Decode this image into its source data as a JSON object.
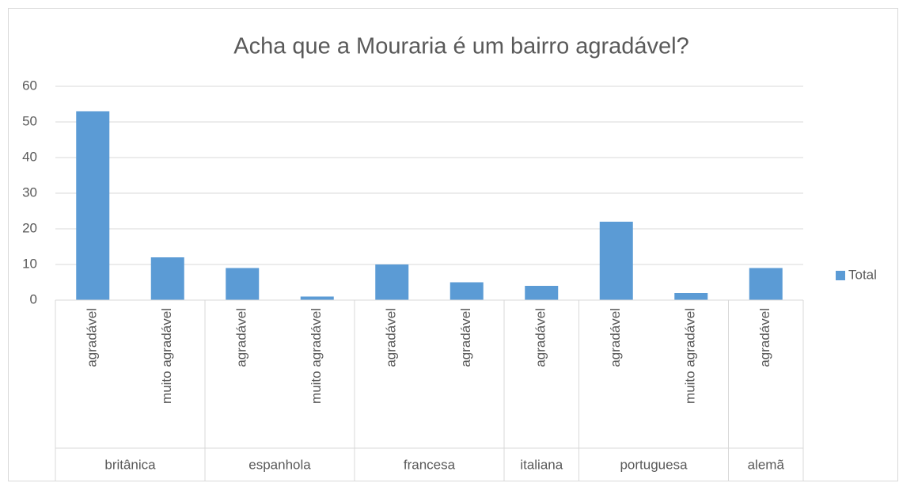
{
  "chart_data": {
    "type": "bar",
    "title": "Acha que a Mouraria é um bairro agradável?",
    "groups": [
      {
        "name": "britânica",
        "categories": [
          "agradável",
          "muito agradável"
        ]
      },
      {
        "name": "espanhola",
        "categories": [
          "agradável",
          "muito agradável"
        ]
      },
      {
        "name": "francesa",
        "categories": [
          "agradável",
          "agradável"
        ]
      },
      {
        "name": "italiana",
        "categories": [
          "agradável"
        ]
      },
      {
        "name": "portuguesa",
        "categories": [
          "agradável",
          "muito agradável"
        ]
      },
      {
        "name": "alemã",
        "categories": [
          "agradável"
        ]
      }
    ],
    "series": [
      {
        "name": "Total",
        "color": "#5b9bd5",
        "values": [
          53,
          12,
          9,
          1,
          10,
          5,
          4,
          22,
          2,
          9
        ]
      }
    ],
    "ylim": [
      0,
      60
    ],
    "yticks": [
      0,
      10,
      20,
      30,
      40,
      50,
      60
    ],
    "grid": true,
    "legend": "right"
  }
}
